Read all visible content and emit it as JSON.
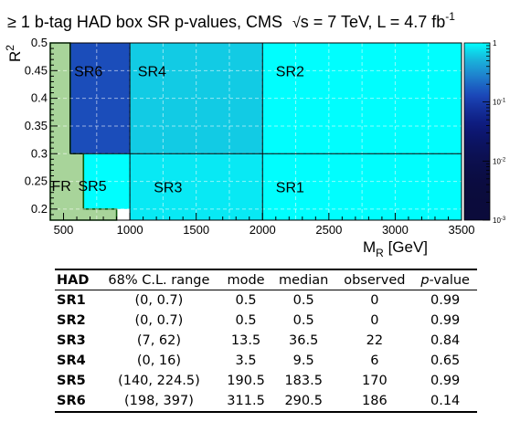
{
  "chart_data": [
    {
      "type": "heatmap",
      "title": "≥ 1 b-tag HAD box SR p-values, CMS",
      "title_energy": "s = 7 TeV, L = 4.7 fb",
      "title_sup": "-1",
      "xlabel": "M",
      "xlabel_sub": "R",
      "xlabel_unit": " [GeV]",
      "ylabel": "R",
      "ylabel_sup": "2",
      "xlim": [
        400,
        3500
      ],
      "ylim": [
        0.18,
        0.5
      ],
      "x_ticks": [
        500,
        1000,
        1500,
        2000,
        2500,
        3000,
        3500
      ],
      "x_tick_labels": [
        "500",
        "1000",
        "1500",
        "2000",
        "2500",
        "3000",
        "3500"
      ],
      "y_ticks": [
        0.2,
        0.25,
        0.3,
        0.35,
        0.4,
        0.45,
        0.5
      ],
      "y_tick_labels": [
        "0.2",
        "0.25",
        "0.3",
        "0.35",
        "0.4",
        "0.45",
        "0.5"
      ],
      "grid": true,
      "colorscale": {
        "log": true,
        "range": [
          0.001,
          1
        ],
        "tick_values": [
          1,
          0.1,
          0.01,
          0.001
        ],
        "tick_labels": [
          "1",
          "10",
          "10",
          "10"
        ],
        "tick_sups": [
          "",
          "-1",
          "-2",
          "-3"
        ],
        "colors": [
          "#0b0b3b",
          "#0d1a7e",
          "#1b47b8",
          "#1f86d0",
          "#18bcdc",
          "#00ffff"
        ]
      },
      "regions": [
        {
          "label": "SR6",
          "x": [
            550,
            1000
          ],
          "y": [
            0.3,
            0.5
          ],
          "p_value": 0.14
        },
        {
          "label": "SR4",
          "x": [
            1000,
            2000
          ],
          "y": [
            0.3,
            0.5
          ],
          "p_value": 0.65
        },
        {
          "label": "SR2",
          "x": [
            2000,
            3500
          ],
          "y": [
            0.3,
            0.5
          ],
          "p_value": 0.99
        },
        {
          "label": "SR5",
          "x": [
            650,
            1000
          ],
          "y": [
            0.2,
            0.3
          ],
          "p_value": 0.99
        },
        {
          "label": "SR3",
          "x": [
            1000,
            2000
          ],
          "y": [
            0.18,
            0.3
          ],
          "p_value": 0.84
        },
        {
          "label": "SR1",
          "x": [
            2000,
            3500
          ],
          "y": [
            0.18,
            0.3
          ],
          "p_value": 0.99
        }
      ],
      "fit_region": {
        "label": "FR",
        "color": "#a8d49a",
        "outline": [
          [
            400,
            0.5
          ],
          [
            550,
            0.5
          ],
          [
            550,
            0.3
          ],
          [
            650,
            0.3
          ],
          [
            650,
            0.2
          ],
          [
            900,
            0.2
          ],
          [
            900,
            0.18
          ],
          [
            400,
            0.18
          ]
        ]
      },
      "blank_region": {
        "x": [
          900,
          1000
        ],
        "y": [
          0.18,
          0.2
        ]
      }
    },
    {
      "type": "table",
      "columns": [
        "HAD",
        "68% C.L. range",
        "mode",
        "median",
        "observed",
        "p-value"
      ],
      "rows": [
        [
          "SR1",
          "(0, 0.7)",
          "0.5",
          "0.5",
          "0",
          "0.99"
        ],
        [
          "SR2",
          "(0, 0.7)",
          "0.5",
          "0.5",
          "0",
          "0.99"
        ],
        [
          "SR3",
          "(7, 62)",
          "13.5",
          "36.5",
          "22",
          "0.84"
        ],
        [
          "SR4",
          "(0, 16)",
          "3.5",
          "9.5",
          "6",
          "0.65"
        ],
        [
          "SR5",
          "(140, 224.5)",
          "190.5",
          "183.5",
          "170",
          "0.99"
        ],
        [
          "SR6",
          "(198, 397)",
          "311.5",
          "290.5",
          "186",
          "0.14"
        ]
      ]
    }
  ]
}
